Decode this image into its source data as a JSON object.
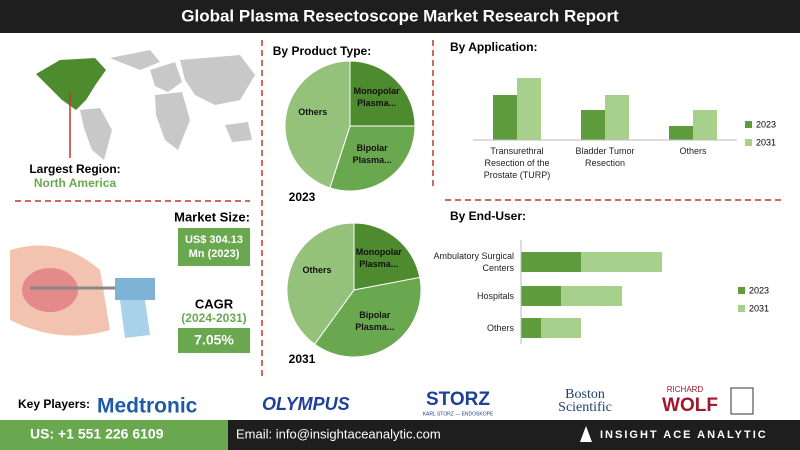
{
  "header": {
    "title": "Global Plasma Resectoscope Market Research Report"
  },
  "region": {
    "label": "Largest Region:",
    "value": "North America"
  },
  "market_size": {
    "label": "Market Size:",
    "value": "US$ 304.13 Mn (2023)"
  },
  "cagr": {
    "label": "CAGR",
    "period": "(2024-2031)",
    "value": "7.05%"
  },
  "key_players": {
    "label": "Key Players:",
    "names": [
      "Medtronic",
      "OLYMPUS",
      "STORZ",
      "KARL STORZ — ENDOSKOPE",
      "Boston Scientific",
      "RICHARD",
      "WOLF"
    ]
  },
  "footer": {
    "phone": "US: +1 551 226 6109",
    "email": "Email: info@insightaceanalytic.com",
    "brand": "INSIGHT ACE ANALYTIC"
  },
  "chart_data": [
    {
      "type": "pie",
      "title": "By Product Type:",
      "subtitle": "2023",
      "categories": [
        "Monopolar Plasma...",
        "Bipolar Plasma...",
        "Others"
      ],
      "values": [
        25,
        30,
        45
      ],
      "colors": [
        "#4e8a2e",
        "#6aa84f",
        "#95c27a"
      ]
    },
    {
      "type": "pie",
      "subtitle": "2031",
      "categories": [
        "Monopolar Plasma...",
        "Bipolar Plasma...",
        "Others"
      ],
      "values": [
        22,
        38,
        40
      ],
      "colors": [
        "#4e8a2e",
        "#6aa84f",
        "#95c27a"
      ]
    },
    {
      "type": "bar",
      "title": "By Application:",
      "categories": [
        "Transurethral Resection of the Prostate (TURP)",
        "Bladder Tumor Resection",
        "Others"
      ],
      "series": [
        {
          "name": "2023",
          "color": "#5e9c3e",
          "values": [
            45,
            30,
            14
          ]
        },
        {
          "name": "2031",
          "color": "#a8d08d",
          "values": [
            62,
            45,
            30
          ]
        }
      ],
      "ylim": [
        0,
        70
      ]
    },
    {
      "type": "hbar-stacked",
      "title": "By End-User:",
      "categories": [
        "Ambulatory Surgical Centers",
        "Hospitals",
        "Others"
      ],
      "series": [
        {
          "name": "2023",
          "color": "#5e9c3e",
          "values": [
            60,
            40,
            20
          ]
        },
        {
          "name": "2031",
          "color": "#a8d08d",
          "values": [
            81,
            61,
            40
          ]
        }
      ],
      "xlim": [
        0,
        160
      ]
    }
  ]
}
